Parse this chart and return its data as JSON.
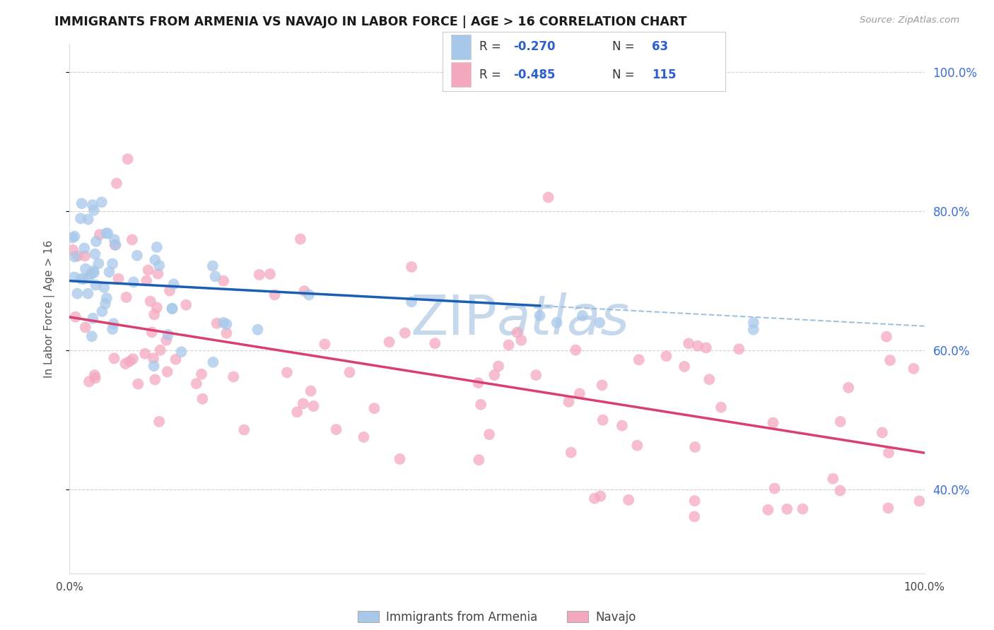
{
  "title": "IMMIGRANTS FROM ARMENIA VS NAVAJO IN LABOR FORCE | AGE > 16 CORRELATION CHART",
  "source_text": "Source: ZipAtlas.com",
  "ylabel": "In Labor Force | Age > 16",
  "armenia_color": "#a8c8ea",
  "navajo_color": "#f4a8be",
  "armenia_line_color": "#1a5fb4",
  "navajo_line_color": "#d94070",
  "dashed_line_color": "#90b8d8",
  "background_color": "#ffffff",
  "grid_color": "#cccccc",
  "watermark_color": "#c5d8ec",
  "ytick_labels": [
    "100.0%",
    "80.0%",
    "60.0%",
    "40.0%"
  ],
  "ytick_values": [
    1.0,
    0.8,
    0.6,
    0.4
  ],
  "xlim": [
    0.0,
    1.0
  ],
  "ylim": [
    0.28,
    1.04
  ],
  "arm_intercept": 0.7,
  "arm_slope": -0.065,
  "arm_line_xmax": 0.55,
  "nav_intercept": 0.648,
  "nav_slope": -0.195,
  "nav_line_xmax": 1.0,
  "legend_r1": "R = -0.270",
  "legend_n1": "N =  63",
  "legend_r2": "R = -0.485",
  "legend_n2": "N = 115",
  "bottom_label1": "Immigrants from Armenia",
  "bottom_label2": "Navajo"
}
